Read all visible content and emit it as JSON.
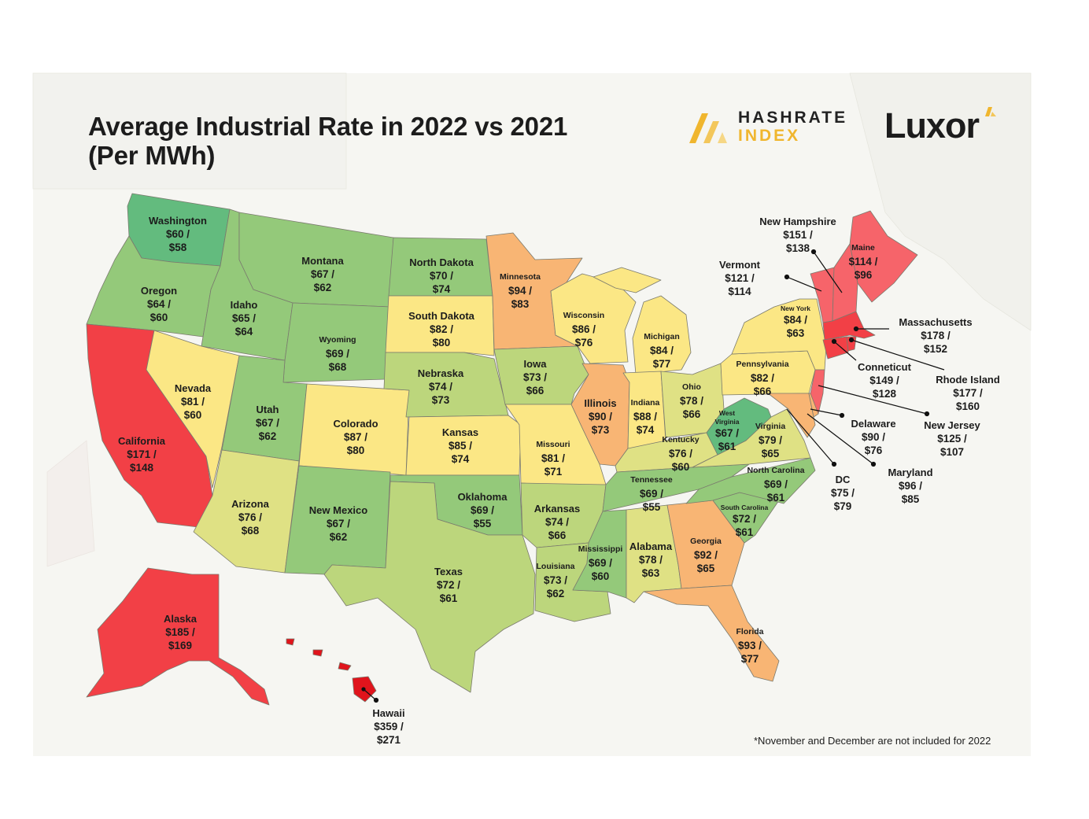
{
  "title": {
    "line1": "Average Industrial Rate in 2022 vs 2021",
    "line2": "(Per MWh)"
  },
  "brands": {
    "hashrate_line1": "HASHRATE",
    "hashrate_line2": "INDEX",
    "luxor": "Luxor"
  },
  "footnote": "*November and December are not included for 2022",
  "colors": {
    "green_dark": "#63bb7e",
    "green": "#94c97a",
    "green_light": "#bcd67c",
    "yellow_green": "#dfe184",
    "yellow": "#fbe785",
    "orange": "#f8b574",
    "red": "#f6646a",
    "red_bright": "#f24046",
    "red_dark": "#e0141c"
  },
  "states": {
    "washington": {
      "name": "Washington",
      "rate_2022": "$60 /",
      "rate_2021": "$58"
    },
    "oregon": {
      "name": "Oregon",
      "rate_2022": "$64 /",
      "rate_2021": "$60"
    },
    "california": {
      "name": "California",
      "rate_2022": "$171 /",
      "rate_2021": "$148"
    },
    "idaho": {
      "name": "Idaho",
      "rate_2022": "$65 /",
      "rate_2021": "$64"
    },
    "nevada": {
      "name": "Nevada",
      "rate_2022": "$81 /",
      "rate_2021": "$60"
    },
    "montana": {
      "name": "Montana",
      "rate_2022": "$67 /",
      "rate_2021": "$62"
    },
    "wyoming": {
      "name": "Wyoming",
      "rate_2022": "$69 /",
      "rate_2021": "$68"
    },
    "utah": {
      "name": "Utah",
      "rate_2022": "$67 /",
      "rate_2021": "$62"
    },
    "arizona": {
      "name": "Arizona",
      "rate_2022": "$76 /",
      "rate_2021": "$68"
    },
    "colorado": {
      "name": "Colorado",
      "rate_2022": "$87 /",
      "rate_2021": "$80"
    },
    "new_mexico": {
      "name": "New Mexico",
      "rate_2022": "$67 /",
      "rate_2021": "$62"
    },
    "north_dakota": {
      "name": "North Dakota",
      "rate_2022": "$70 /",
      "rate_2021": "$74"
    },
    "south_dakota": {
      "name": "South Dakota",
      "rate_2022": "$82 /",
      "rate_2021": "$80"
    },
    "nebraska": {
      "name": "Nebraska",
      "rate_2022": "$74 /",
      "rate_2021": "$73"
    },
    "kansas": {
      "name": "Kansas",
      "rate_2022": "$85 /",
      "rate_2021": "$74"
    },
    "oklahoma": {
      "name": "Oklahoma",
      "rate_2022": "$69 /",
      "rate_2021": "$55"
    },
    "texas": {
      "name": "Texas",
      "rate_2022": "$72 /",
      "rate_2021": "$61"
    },
    "minnesota": {
      "name": "Minnesota",
      "rate_2022": "$94 /",
      "rate_2021": "$83"
    },
    "iowa": {
      "name": "Iowa",
      "rate_2022": "$73 /",
      "rate_2021": "$66"
    },
    "missouri": {
      "name": "Missouri",
      "rate_2022": "$81 /",
      "rate_2021": "$71"
    },
    "arkansas": {
      "name": "Arkansas",
      "rate_2022": "$74 /",
      "rate_2021": "$66"
    },
    "louisiana": {
      "name": "Louisiana",
      "rate_2022": "$73 /",
      "rate_2021": "$62"
    },
    "wisconsin": {
      "name": "Wisconsin",
      "rate_2022": "$86 /",
      "rate_2021": "$76"
    },
    "illinois": {
      "name": "Illinois",
      "rate_2022": "$90 /",
      "rate_2021": "$73"
    },
    "michigan": {
      "name": "Michigan",
      "rate_2022": "$84 /",
      "rate_2021": "$77"
    },
    "indiana": {
      "name": "Indiana",
      "rate_2022": "$88 /",
      "rate_2021": "$74"
    },
    "ohio": {
      "name": "Ohio",
      "rate_2022": "$78 /",
      "rate_2021": "$66"
    },
    "kentucky": {
      "name": "Kentucky",
      "rate_2022": "$76 /",
      "rate_2021": "$60"
    },
    "tennessee": {
      "name": "Tennessee",
      "rate_2022": "$69 /",
      "rate_2021": "$55"
    },
    "mississippi": {
      "name": "Mississippi",
      "rate_2022": "$69 /",
      "rate_2021": "$60"
    },
    "alabama": {
      "name": "Alabama",
      "rate_2022": "$78 /",
      "rate_2021": "$63"
    },
    "georgia": {
      "name": "Georgia",
      "rate_2022": "$92 /",
      "rate_2021": "$65"
    },
    "florida": {
      "name": "Florida",
      "rate_2022": "$93 /",
      "rate_2021": "$77"
    },
    "south_carolina": {
      "name": "South Carolina",
      "rate_2022": "$72 /",
      "rate_2021": "$61"
    },
    "north_carolina": {
      "name": "North Carolina",
      "rate_2022": "$69 /",
      "rate_2021": "$61"
    },
    "virginia": {
      "name": "Virginia",
      "rate_2022": "$79 /",
      "rate_2021": "$65"
    },
    "west_virginia": {
      "name_line1": "West",
      "name_line2": "Virginia",
      "rate_2022": "$67 /",
      "rate_2021": "$61"
    },
    "pennsylvania": {
      "name": "Pennsylvania",
      "rate_2022": "$82 /",
      "rate_2021": "$66"
    },
    "new_york": {
      "name": "New York",
      "rate_2022": "$84 /",
      "rate_2021": "$63"
    },
    "maine": {
      "name": "Maine",
      "rate_2022": "$114 /",
      "rate_2021": "$96"
    },
    "new_hampshire": {
      "name": "New Hampshire",
      "rate_2022": "$151 /",
      "rate_2021": "$138"
    },
    "vermont": {
      "name": "Vermont",
      "rate_2022": "$121 /",
      "rate_2021": "$114"
    },
    "massachusetts": {
      "name": "Massachusetts",
      "rate_2022": "$178 /",
      "rate_2021": "$152"
    },
    "connecticut": {
      "name": "Conneticut",
      "rate_2022": "$149 /",
      "rate_2021": "$128"
    },
    "rhode_island": {
      "name": "Rhode Island",
      "rate_2022": "$177 /",
      "rate_2021": "$160"
    },
    "new_jersey": {
      "name": "New Jersey",
      "rate_2022": "$125 /",
      "rate_2021": "$107"
    },
    "delaware": {
      "name": "Delaware",
      "rate_2022": "$90 /",
      "rate_2021": "$76"
    },
    "maryland": {
      "name": "Maryland",
      "rate_2022": "$96 /",
      "rate_2021": "$85"
    },
    "dc": {
      "name": "DC",
      "rate_2022": "$75 /",
      "rate_2021": "$79"
    },
    "alaska": {
      "name": "Alaska",
      "rate_2022": "$185 /",
      "rate_2021": "$169"
    },
    "hawaii": {
      "name": "Hawaii",
      "rate_2022": "$359 /",
      "rate_2021": "$271"
    }
  }
}
